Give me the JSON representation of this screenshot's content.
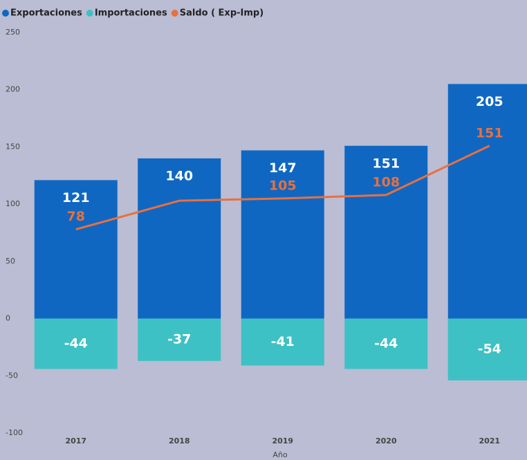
{
  "chart_data": {
    "type": "combo",
    "x_label": "Año",
    "categories": [
      "2017",
      "2018",
      "2019",
      "2020",
      "2021"
    ],
    "series": [
      {
        "name": "Exportaciones",
        "type": "bar",
        "color": "#0f67c2",
        "values": [
          121,
          140,
          147,
          151,
          205
        ]
      },
      {
        "name": "Importaciones",
        "type": "bar",
        "color": "#3ec1c4",
        "values": [
          -44,
          -37,
          -41,
          -44,
          -54
        ]
      },
      {
        "name": "Saldo ( Exp-Imp)",
        "type": "line",
        "color": "#e9703e",
        "values": [
          78,
          103,
          105,
          108,
          151
        ],
        "value_labels": [
          "78",
          null,
          "105",
          "108",
          "151"
        ]
      }
    ],
    "ylim": [
      -100,
      250
    ],
    "yticks": [
      -100,
      -50,
      0,
      50,
      100,
      150,
      200,
      250
    ],
    "grid": false,
    "legend": "top-left"
  }
}
